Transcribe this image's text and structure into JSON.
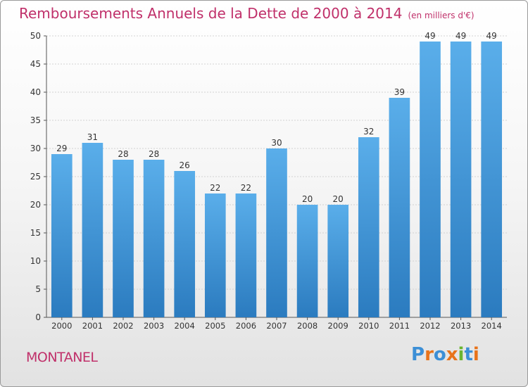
{
  "header": {
    "title": "Remboursements Annuels de la Dette de 2000 à 2014",
    "unit": "(en milliers d'€)"
  },
  "footer": {
    "commune": "MONTANEL",
    "logo_text": "Proxiti"
  },
  "colors": {
    "title": "#c0306a",
    "bar_top": "#5aaeea",
    "bar_bottom": "#2b7bbf",
    "logo": [
      "#3c8fd6",
      "#e8731a",
      "#3c8fd6",
      "#e8731a",
      "#6bb52f",
      "#3c8fd6",
      "#e8731a"
    ]
  },
  "chart_data": {
    "type": "bar",
    "title": "Remboursements Annuels de la Dette de 2000 à 2014",
    "xlabel": "",
    "ylabel": "",
    "categories": [
      "2000",
      "2001",
      "2002",
      "2003",
      "2004",
      "2005",
      "2006",
      "2007",
      "2008",
      "2009",
      "2010",
      "2011",
      "2012",
      "2013",
      "2014"
    ],
    "values": [
      29,
      31,
      28,
      28,
      26,
      22,
      22,
      30,
      20,
      20,
      32,
      39,
      49,
      49,
      49
    ],
    "ylim": [
      0,
      50
    ],
    "yticks": [
      0,
      5,
      10,
      15,
      20,
      25,
      30,
      35,
      40,
      45,
      50
    ],
    "grid": true,
    "legend": "none"
  }
}
